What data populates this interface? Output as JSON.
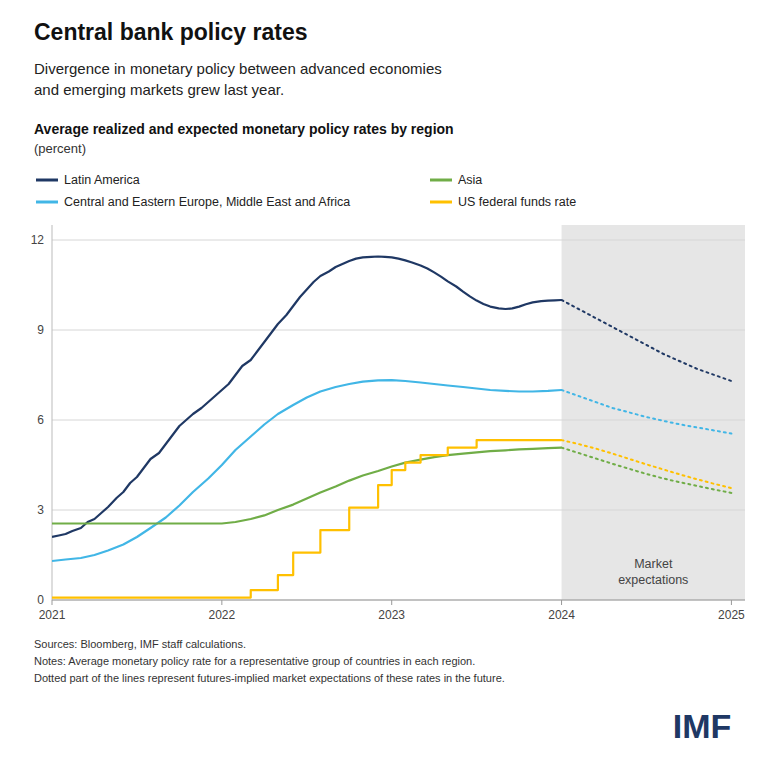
{
  "chart_data": {
    "type": "line",
    "title": "Central bank policy rates",
    "subtitle": "Divergence in monetary policy between advanced economies\nand emerging markets grew last year.",
    "chart_title": "Average realized and expected monetary policy rates by region",
    "chart_subtitle": "(percent)",
    "source_text": "Sources: Bloomberg, IMF staff calculations.\nNotes: Average monetary policy rate for a representative group of countries in each region.\nDotted part of the lines represent futures-implied market expectations of these rates in the future.",
    "logo": {
      "text": "IMF",
      "color": "#1f3864"
    },
    "xlim": [
      2021,
      2025.08
    ],
    "xticks": [
      2021,
      2022,
      2023,
      2024,
      2025
    ],
    "ylim": [
      0,
      12.5
    ],
    "yticks": [
      0,
      3,
      6,
      9,
      12
    ],
    "grid": true,
    "legend": "top",
    "forecast_region": {
      "start": 2024.0,
      "end": 2025.08,
      "color": "#e6e6e6",
      "label": "Market\nexpectations"
    },
    "series": [
      {
        "name": "Latin America",
        "color": "#1f3864",
        "line_style": "solid",
        "x": [
          2021.0,
          2021.04,
          2021.08,
          2021.12,
          2021.17,
          2021.21,
          2021.25,
          2021.29,
          2021.33,
          2021.38,
          2021.42,
          2021.46,
          2021.5,
          2021.54,
          2021.58,
          2021.63,
          2021.67,
          2021.71,
          2021.75,
          2021.79,
          2021.83,
          2021.88,
          2021.92,
          2021.96,
          2022.0,
          2022.04,
          2022.08,
          2022.12,
          2022.17,
          2022.21,
          2022.25,
          2022.29,
          2022.33,
          2022.38,
          2022.42,
          2022.46,
          2022.5,
          2022.54,
          2022.58,
          2022.63,
          2022.67,
          2022.71,
          2022.75,
          2022.79,
          2022.83,
          2022.88,
          2022.92,
          2022.96,
          2023.0,
          2023.04,
          2023.08,
          2023.12,
          2023.17,
          2023.21,
          2023.25,
          2023.29,
          2023.33,
          2023.38,
          2023.42,
          2023.46,
          2023.5,
          2023.54,
          2023.58,
          2023.63,
          2023.67,
          2023.71,
          2023.75,
          2023.79,
          2023.83,
          2023.88,
          2023.92,
          2023.96,
          2024.0
        ],
        "values": [
          2.1,
          2.15,
          2.2,
          2.3,
          2.4,
          2.6,
          2.7,
          2.9,
          3.1,
          3.4,
          3.6,
          3.9,
          4.1,
          4.4,
          4.7,
          4.9,
          5.2,
          5.5,
          5.8,
          6.0,
          6.2,
          6.4,
          6.6,
          6.8,
          7.0,
          7.2,
          7.5,
          7.8,
          8.0,
          8.3,
          8.6,
          8.9,
          9.2,
          9.5,
          9.8,
          10.1,
          10.35,
          10.6,
          10.8,
          10.95,
          11.1,
          11.2,
          11.3,
          11.38,
          11.42,
          11.44,
          11.45,
          11.44,
          11.42,
          11.38,
          11.32,
          11.25,
          11.15,
          11.05,
          10.92,
          10.78,
          10.62,
          10.45,
          10.28,
          10.12,
          9.98,
          9.87,
          9.78,
          9.72,
          9.7,
          9.72,
          9.78,
          9.86,
          9.92,
          9.96,
          9.98,
          9.99,
          10.0
        ],
        "expected": {
          "line_style": "dotted",
          "x": [
            2024.0,
            2024.1,
            2024.2,
            2024.3,
            2024.4,
            2024.5,
            2024.6,
            2024.7,
            2024.8,
            2024.9,
            2025.0
          ],
          "values": [
            10.0,
            9.7,
            9.4,
            9.1,
            8.8,
            8.5,
            8.2,
            7.95,
            7.7,
            7.5,
            7.3
          ]
        }
      },
      {
        "name": "Central and Eastern Europe, Middle East and Africa",
        "color": "#41b6e6",
        "line_style": "solid",
        "x": [
          2021.0,
          2021.08,
          2021.17,
          2021.25,
          2021.33,
          2021.42,
          2021.5,
          2021.58,
          2021.67,
          2021.75,
          2021.83,
          2021.92,
          2022.0,
          2022.08,
          2022.17,
          2022.25,
          2022.33,
          2022.42,
          2022.5,
          2022.58,
          2022.67,
          2022.75,
          2022.83,
          2022.92,
          2023.0,
          2023.08,
          2023.17,
          2023.25,
          2023.33,
          2023.42,
          2023.5,
          2023.58,
          2023.67,
          2023.75,
          2023.83,
          2023.92,
          2024.0
        ],
        "values": [
          1.3,
          1.35,
          1.4,
          1.5,
          1.65,
          1.85,
          2.1,
          2.4,
          2.75,
          3.15,
          3.6,
          4.05,
          4.5,
          5.0,
          5.45,
          5.85,
          6.2,
          6.5,
          6.75,
          6.95,
          7.1,
          7.2,
          7.28,
          7.32,
          7.33,
          7.3,
          7.25,
          7.2,
          7.15,
          7.1,
          7.05,
          7.0,
          6.97,
          6.95,
          6.95,
          6.97,
          7.0
        ],
        "expected": {
          "line_style": "dotted",
          "x": [
            2024.0,
            2024.1,
            2024.2,
            2024.3,
            2024.4,
            2024.5,
            2024.6,
            2024.7,
            2024.8,
            2024.9,
            2025.0
          ],
          "values": [
            7.0,
            6.8,
            6.6,
            6.4,
            6.25,
            6.1,
            5.97,
            5.85,
            5.75,
            5.65,
            5.55
          ]
        }
      },
      {
        "name": "Asia",
        "color": "#70ad47",
        "line_style": "solid",
        "x": [
          2021.0,
          2021.08,
          2021.17,
          2021.25,
          2021.33,
          2021.42,
          2021.5,
          2021.58,
          2021.67,
          2021.75,
          2021.83,
          2021.92,
          2022.0,
          2022.08,
          2022.17,
          2022.25,
          2022.33,
          2022.42,
          2022.5,
          2022.58,
          2022.67,
          2022.75,
          2022.83,
          2022.92,
          2023.0,
          2023.08,
          2023.17,
          2023.25,
          2023.33,
          2023.42,
          2023.5,
          2023.58,
          2023.67,
          2023.75,
          2023.83,
          2023.92,
          2024.0
        ],
        "values": [
          2.55,
          2.55,
          2.55,
          2.55,
          2.55,
          2.55,
          2.55,
          2.55,
          2.55,
          2.55,
          2.55,
          2.55,
          2.55,
          2.6,
          2.7,
          2.82,
          3.0,
          3.18,
          3.38,
          3.58,
          3.78,
          3.98,
          4.15,
          4.3,
          4.45,
          4.58,
          4.68,
          4.76,
          4.83,
          4.88,
          4.92,
          4.96,
          4.99,
          5.02,
          5.04,
          5.06,
          5.08
        ],
        "expected": {
          "line_style": "dotted",
          "x": [
            2024.0,
            2024.1,
            2024.2,
            2024.3,
            2024.4,
            2024.5,
            2024.6,
            2024.7,
            2024.8,
            2024.9,
            2025.0
          ],
          "values": [
            5.08,
            4.9,
            4.72,
            4.54,
            4.37,
            4.2,
            4.05,
            3.92,
            3.8,
            3.68,
            3.57
          ]
        }
      },
      {
        "name": "US federal funds rate",
        "color": "#ffc000",
        "line_style": "solid",
        "x": [
          2021.0,
          2021.92,
          2022.0,
          2022.04,
          2022.17,
          2022.17,
          2022.33,
          2022.33,
          2022.42,
          2022.42,
          2022.58,
          2022.58,
          2022.75,
          2022.75,
          2022.92,
          2022.92,
          2023.0,
          2023.0,
          2023.08,
          2023.08,
          2023.17,
          2023.17,
          2023.33,
          2023.33,
          2023.42,
          2023.42,
          2023.5,
          2023.5,
          2024.0
        ],
        "values": [
          0.08,
          0.08,
          0.08,
          0.08,
          0.08,
          0.33,
          0.33,
          0.83,
          0.83,
          1.58,
          1.58,
          2.33,
          2.33,
          3.08,
          3.08,
          3.83,
          3.83,
          4.33,
          4.33,
          4.58,
          4.58,
          4.83,
          4.83,
          5.08,
          5.08,
          5.08,
          5.08,
          5.33,
          5.33
        ],
        "expected": {
          "line_style": "dotted",
          "x": [
            2024.0,
            2024.1,
            2024.2,
            2024.3,
            2024.4,
            2024.5,
            2024.6,
            2024.7,
            2024.8,
            2024.9,
            2025.0
          ],
          "values": [
            5.33,
            5.2,
            5.05,
            4.88,
            4.7,
            4.52,
            4.35,
            4.18,
            4.02,
            3.87,
            3.73
          ]
        }
      }
    ]
  }
}
